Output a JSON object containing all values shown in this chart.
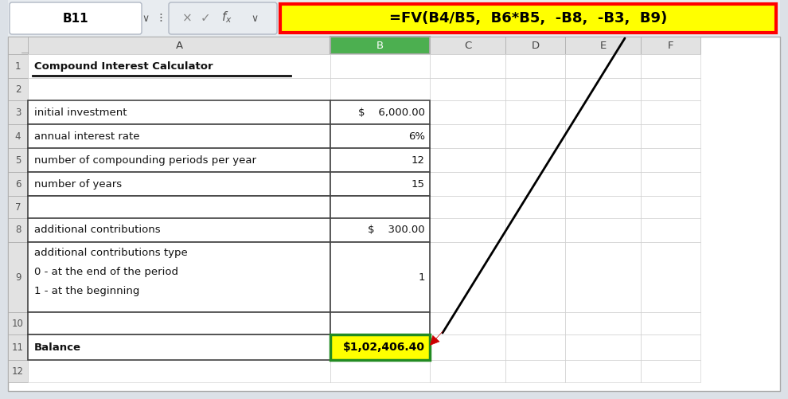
{
  "formula_bar_cell_ref": "B11",
  "formula_bar_formula": "=FV(B4/B5,  B6*B5,  -B8,  -B3,  B9)",
  "col_headers": [
    "A",
    "B",
    "C",
    "D",
    "E",
    "F"
  ],
  "row_data": [
    {
      "row": 1,
      "a": "Compound Interest Calculator",
      "b": "",
      "bold_a": true,
      "multiline": false,
      "b_highlight": false
    },
    {
      "row": 2,
      "a": "",
      "b": "",
      "bold_a": false,
      "multiline": false,
      "b_highlight": false
    },
    {
      "row": 3,
      "a": "initial investment",
      "b": "$    6,000.00",
      "bold_a": false,
      "multiline": false,
      "b_highlight": false
    },
    {
      "row": 4,
      "a": "annual interest rate",
      "b": "6%",
      "bold_a": false,
      "multiline": false,
      "b_highlight": false
    },
    {
      "row": 5,
      "a": "number of compounding periods per year",
      "b": "12",
      "bold_a": false,
      "multiline": false,
      "b_highlight": false
    },
    {
      "row": 6,
      "a": "number of years",
      "b": "15",
      "bold_a": false,
      "multiline": false,
      "b_highlight": false
    },
    {
      "row": 7,
      "a": "",
      "b": "",
      "bold_a": false,
      "multiline": false,
      "b_highlight": false
    },
    {
      "row": 8,
      "a": "additional contributions",
      "b": "$    300.00",
      "bold_a": false,
      "multiline": false,
      "b_highlight": false
    },
    {
      "row": 9,
      "a": "additional contributions type\n0 - at the end of the period\n1 - at the beginning",
      "b": "1",
      "bold_a": false,
      "multiline": true,
      "b_highlight": false
    },
    {
      "row": 10,
      "a": "",
      "b": "",
      "bold_a": false,
      "multiline": false,
      "b_highlight": false
    },
    {
      "row": 11,
      "a": "Balance",
      "b": "$1,02,406.40",
      "bold_a": true,
      "multiline": false,
      "b_highlight": true
    }
  ],
  "bg_color": "#dce1e7",
  "sheet_bg": "#ffffff",
  "header_bg": "#e2e2e2",
  "col_b_header_bg": "#4caf50",
  "col_b_cell_bg": "#ffffff",
  "grid_color": "#c8c8c8",
  "border_color": "#888888",
  "formula_yellow": "#ffff00",
  "formula_red_border": "#ff0000",
  "balance_yellow": "#ffff00",
  "balance_green_border": "#228b22",
  "arrow_color": "#000000",
  "arrowhead_color": "#cc0000"
}
